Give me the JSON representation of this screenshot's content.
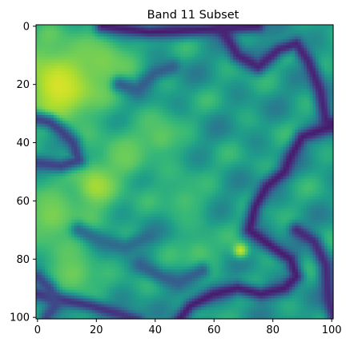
{
  "chart_data": {
    "type": "heatmap",
    "title": "Band 11 Subset",
    "xlabel": "",
    "ylabel": "",
    "colormap": "viridis",
    "xlim": [
      -0.5,
      100.5
    ],
    "ylim": [
      100.5,
      -0.5
    ],
    "grid": false,
    "xticks": [
      0,
      20,
      40,
      60,
      80,
      100
    ],
    "yticks": [
      0,
      20,
      40,
      60,
      80,
      100
    ],
    "xtick_labels": [
      "0",
      "20",
      "40",
      "60",
      "80",
      "100"
    ],
    "ytick_labels": [
      "0",
      "20",
      "40",
      "60",
      "80",
      "100"
    ],
    "grid_size": [
      101,
      101
    ],
    "value_range": [
      0.0,
      1.0
    ],
    "features": {
      "background_level": 0.55,
      "bright_regions": [
        {
          "center": [
            8,
            20
          ],
          "radius": 11,
          "value": 0.95
        },
        {
          "center": [
            22,
            12
          ],
          "radius": 7,
          "value": 0.8
        },
        {
          "center": [
            20,
            55
          ],
          "radius": 6,
          "value": 0.88
        },
        {
          "center": [
            30,
            45
          ],
          "radius": 6,
          "value": 0.78
        },
        {
          "center": [
            5,
            65
          ],
          "radius": 8,
          "value": 0.8
        },
        {
          "center": [
            12,
            85
          ],
          "radius": 7,
          "value": 0.78
        },
        {
          "center": [
            42,
            38
          ],
          "radius": 6,
          "value": 0.75
        },
        {
          "center": [
            69,
            77
          ],
          "radius": 2,
          "value": 0.92
        },
        {
          "center": [
            55,
            78
          ],
          "radius": 5,
          "value": 0.72
        },
        {
          "center": [
            50,
            60
          ],
          "radius": 6,
          "value": 0.7
        }
      ],
      "dark_channels": [
        {
          "points": [
            [
              22,
              0
            ],
            [
              38,
              2
            ],
            [
              60,
              1
            ],
            [
              75,
              0
            ]
          ],
          "value": 0.08
        },
        {
          "points": [
            [
              62,
              0
            ],
            [
              68,
              10
            ],
            [
              75,
              14
            ],
            [
              82,
              8
            ],
            [
              88,
              6
            ],
            [
              92,
              12
            ],
            [
              96,
              22
            ],
            [
              98,
              32
            ],
            [
              101,
              34
            ]
          ],
          "value": 0.1
        },
        {
          "points": [
            [
              101,
              34
            ],
            [
              90,
              38
            ],
            [
              86,
              45
            ],
            [
              84,
              50
            ],
            [
              78,
              55
            ],
            [
              74,
              62
            ],
            [
              72,
              70
            ],
            [
              80,
              76
            ],
            [
              86,
              80
            ],
            [
              88,
              86
            ],
            [
              84,
              90
            ],
            [
              76,
              92
            ],
            [
              68,
              90
            ],
            [
              60,
              92
            ],
            [
              52,
              96
            ],
            [
              48,
              101
            ]
          ],
          "value": 0.08
        },
        {
          "points": [
            [
              88,
              70
            ],
            [
              94,
              74
            ],
            [
              98,
              82
            ],
            [
              99,
              94
            ],
            [
              101,
              101
            ]
          ],
          "value": 0.12
        },
        {
          "points": [
            [
              0,
              47
            ],
            [
              8,
              48
            ],
            [
              14,
              46
            ],
            [
              12,
              40
            ],
            [
              8,
              36
            ],
            [
              4,
              33
            ],
            [
              0,
              32
            ]
          ],
          "value": 0.2
        },
        {
          "points": [
            [
              0,
              92
            ],
            [
              8,
              94
            ],
            [
              18,
              96
            ],
            [
              28,
              99
            ],
            [
              34,
              101
            ]
          ],
          "value": 0.15
        },
        {
          "points": [
            [
              0,
              86
            ],
            [
              4,
              90
            ],
            [
              6,
              96
            ],
            [
              3,
              100
            ]
          ],
          "value": 0.22
        },
        {
          "points": [
            [
              28,
              20
            ],
            [
              34,
              22
            ],
            [
              40,
              16
            ],
            [
              46,
              14
            ]
          ],
          "value": 0.3
        },
        {
          "points": [
            [
              35,
              82
            ],
            [
              42,
              86
            ],
            [
              48,
              88
            ],
            [
              56,
              84
            ]
          ],
          "value": 0.3
        },
        {
          "points": [
            [
              14,
              70
            ],
            [
              22,
              74
            ],
            [
              30,
              76
            ],
            [
              38,
              72
            ]
          ],
          "value": 0.35
        }
      ]
    }
  }
}
